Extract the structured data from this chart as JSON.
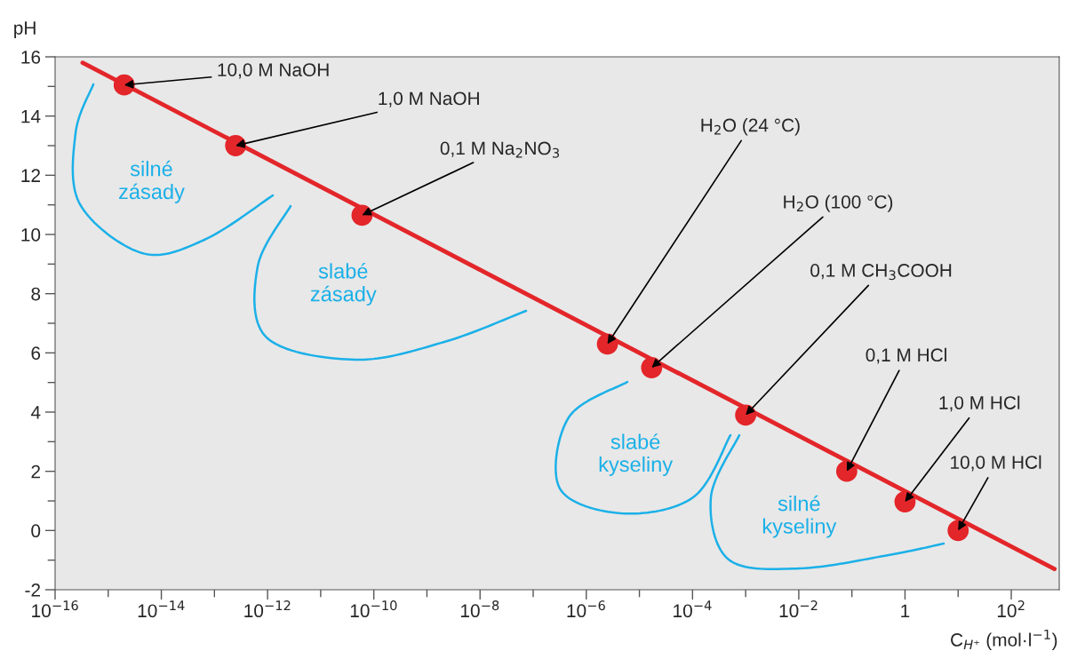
{
  "chart_data": {
    "type": "line",
    "xlabel": "C$_{H⁺}$ (mol·l$^{−1}$)",
    "ylabel": "pH",
    "log": "x",
    "grid": false,
    "xlim": [
      1e-16,
      800
    ],
    "ylim": [
      -2,
      16
    ],
    "xticks": [
      {
        "value": 1e-16,
        "label": "10$^{−16}$"
      },
      {
        "value": 1e-15,
        "label": null
      },
      {
        "value": 1e-14,
        "label": "10$^{−14}$"
      },
      {
        "value": 1e-13,
        "label": null
      },
      {
        "value": 1e-12,
        "label": "10$^{−12}$"
      },
      {
        "value": 1e-11,
        "label": null
      },
      {
        "value": 1e-10,
        "label": "10$^{−10}$"
      },
      {
        "value": 1e-09,
        "label": null
      },
      {
        "value": 1e-08,
        "label": "10$^{−8}$"
      },
      {
        "value": 1e-07,
        "label": null
      },
      {
        "value": 1e-06,
        "label": "10$^{−6}$"
      },
      {
        "value": 1e-05,
        "label": null
      },
      {
        "value": 0.0001,
        "label": "10$^{−4}$"
      },
      {
        "value": 0.001,
        "label": null
      },
      {
        "value": 0.01,
        "label": "10$^{−2}$"
      },
      {
        "value": 0.1,
        "label": null
      },
      {
        "value": 1,
        "label": "1"
      },
      {
        "value": 10,
        "label": null
      },
      {
        "value": 100,
        "label": "10$^{2}$"
      }
    ],
    "yticks": [
      -2,
      {
        "value": -1,
        "label": null
      },
      0,
      {
        "value": 1,
        "label": null
      },
      2,
      {
        "value": 3,
        "label": null
      },
      4,
      {
        "value": 5,
        "label": null
      },
      6,
      {
        "value": 7,
        "label": null
      },
      8,
      {
        "value": 9,
        "label": null
      },
      10,
      {
        "value": 11,
        "label": null
      },
      12,
      {
        "value": 13,
        "label": null
      },
      14,
      {
        "value": 15,
        "label": null
      },
      16
    ],
    "series": [
      {
        "color": "#e3262a",
        "x": [
          3.3e-16,
          650
        ],
        "values": [
          15.8,
          -1.3
        ]
      },
      {
        "type": "scatter",
        "color": "#e3262a",
        "marker": "circle",
        "x": [
          2e-15,
          2.5e-13,
          6e-11,
          2.5e-06,
          1.7e-05,
          0.001,
          0.08,
          1,
          10
        ],
        "values": [
          15.05,
          13,
          10.65,
          6.3,
          5.5,
          3.9,
          2,
          0.97,
          0
        ]
      }
    ],
    "annotations": [
      {
        "text": "10,0 M NaOH",
        "x": 2e-15,
        "y": 15.05
      },
      {
        "text": "1,0 M NaOH",
        "x": 2.5e-13,
        "y": 13
      },
      {
        "text": "0,1 M Na$_{2}$NO$_{3}$",
        "x": 6e-11,
        "y": 10.65
      },
      {
        "text": "H$_{2}$O (24 °C)",
        "x": 2.5e-06,
        "y": 6.3
      },
      {
        "text": "H$_{2}$O (100 °C)",
        "x": 1.7e-05,
        "y": 5.5
      },
      {
        "text": "0,1 M CH$_{3}$COOH",
        "x": 0.001,
        "y": 3.9
      },
      {
        "text": "0,1 M HCl",
        "x": 0.08,
        "y": 2
      },
      {
        "text": "1,0 M HCl",
        "x": 1,
        "y": 0.97
      },
      {
        "text": "10,0 M HCl",
        "x": 10,
        "y": 0
      },
      "silné\nzásady",
      "slabé\nzásady",
      "slabé\nkyseliny",
      "silné\nkyseliny"
    ]
  }
}
